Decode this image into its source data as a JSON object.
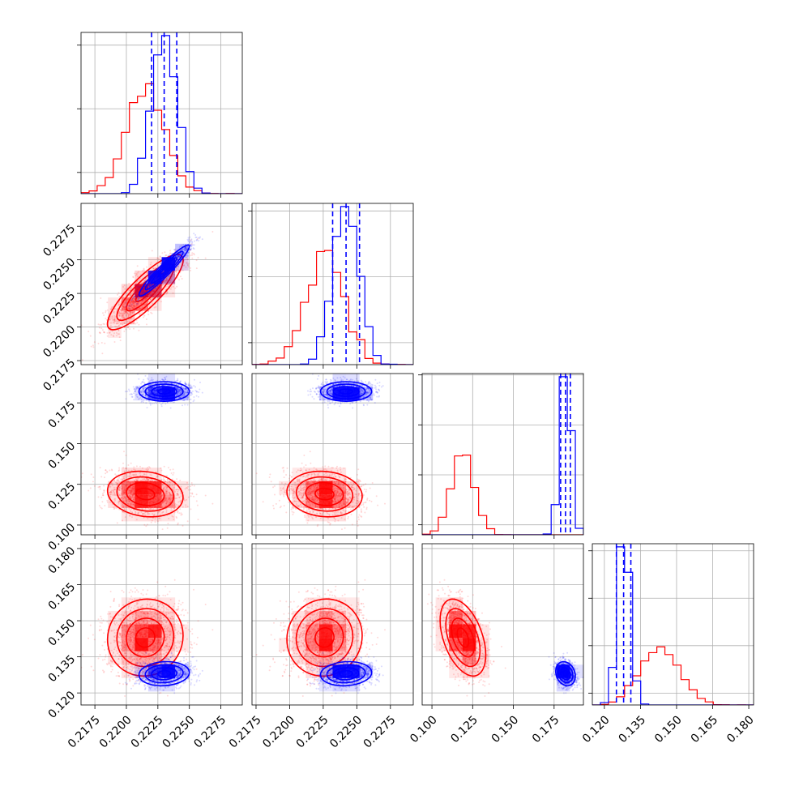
{
  "chart_data": {
    "type": "scatter",
    "layout": "corner",
    "title": "",
    "parameters": 4,
    "series": [
      {
        "color": "#ff0000"
      },
      {
        "color": "#0000ff"
      }
    ],
    "colors": {
      "red": "#ff0000",
      "blue": "#0000ff",
      "grid": "#b0b0b0"
    },
    "grid": true,
    "axes": {
      "p0": {
        "range": [
          0.2164,
          0.2292
        ],
        "ticks": [
          0.2175,
          0.22,
          0.2225,
          0.225,
          0.2275
        ],
        "tick_labels": [
          "0.2175",
          "0.2200",
          "0.2225",
          "0.2250",
          "0.2275"
        ]
      },
      "p1": {
        "range": [
          0.2172,
          0.2292
        ],
        "ticks": [
          0.2175,
          0.22,
          0.2225,
          0.225,
          0.2275
        ],
        "tick_labels": [
          "0.2175",
          "0.2200",
          "0.2225",
          "0.2250",
          "0.2275"
        ]
      },
      "p2": {
        "range": [
          0.094,
          0.193
        ],
        "ticks": [
          0.1,
          0.125,
          0.15,
          0.175
        ],
        "tick_labels": [
          "0.100",
          "0.125",
          "0.150",
          "0.175"
        ]
      },
      "p3": {
        "range": [
          0.115,
          0.182
        ],
        "ticks": [
          0.12,
          0.135,
          0.15,
          0.165,
          0.18
        ],
        "tick_labels": [
          "0.120",
          "0.135",
          "0.150",
          "0.165",
          "0.180"
        ]
      }
    },
    "dist": {
      "red": {
        "mean": [
          0.2215,
          0.2226,
          0.119,
          0.143
        ],
        "sd": [
          0.0015,
          0.0014,
          0.007,
          0.008
        ]
      },
      "blue": {
        "mean": [
          0.223,
          0.2242,
          0.182,
          0.128
        ],
        "sd": [
          0.001,
          0.00095,
          0.003,
          0.0025
        ]
      }
    },
    "correlations": {
      "red": {
        "0-1": 0.85,
        "0-2": -0.15,
        "1-2": -0.1,
        "0-3": 0.05,
        "1-3": 0.05,
        "2-3": -0.45
      },
      "blue": {
        "0-1": 0.95,
        "0-2": 0.0,
        "1-2": 0.0,
        "0-3": 0.1,
        "1-3": 0.1,
        "2-3": -0.2
      }
    },
    "quantile_lines": {
      "color": "#0000ff",
      "style": "dashed",
      "p0": [
        0.222,
        0.223,
        0.224
      ],
      "p1": [
        0.2232,
        0.2242,
        0.2252
      ],
      "p2": [
        0.179,
        0.182,
        0.185
      ],
      "p3": [
        0.125,
        0.128,
        0.131
      ]
    }
  }
}
